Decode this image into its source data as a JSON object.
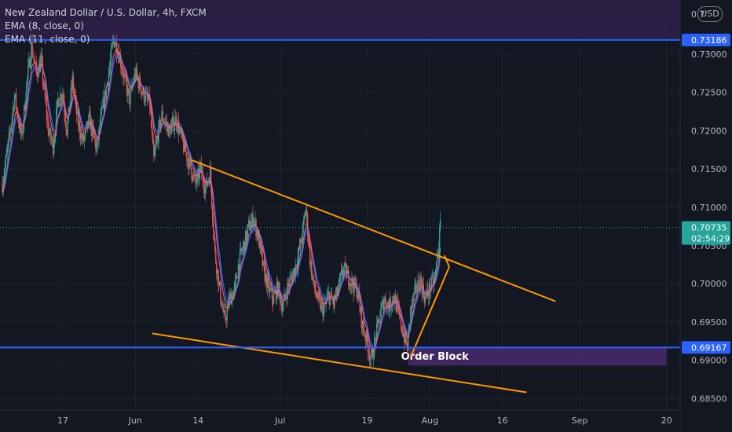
{
  "legend": {
    "symbol": "New Zealand Dollar / U.S. Dollar, 4h, FXCM",
    "ema1": "EMA (8, close, 0)",
    "ema2": "EMA (11, close, 0)"
  },
  "currency_button": "USD",
  "price_axis_top_label": "0.7",
  "colors": {
    "background": "#131722",
    "up_candle": "#26a69a",
    "down_candle": "#ef5350",
    "ema8": "#ff6d6d",
    "ema11": "#2962ff",
    "support_line": "#2962ff",
    "trendline": "#ff9800",
    "zone_fill": "#4a2a6b",
    "grid": "#1e222d",
    "axis_text": "#b2b5be"
  },
  "chart_data": {
    "type": "candlestick",
    "instrument": "New Zealand Dollar / U.S. Dollar",
    "timeframe": "4h",
    "source": "FXCM",
    "ylim": [
      0.6835,
      0.7345
    ],
    "y_ticks": [
      0.685,
      0.69,
      0.695,
      0.7,
      0.71,
      0.715,
      0.72,
      0.725,
      0.73
    ],
    "y_tick_labels": [
      "0.68500",
      "0.69000",
      "0.69500",
      "0.70000",
      "0.71000",
      "0.71500",
      "0.72000",
      "0.72500",
      "0.73000"
    ],
    "x_ticks": [
      {
        "label": "17",
        "day": 0
      },
      {
        "label": "Jun",
        "day": 15
      },
      {
        "label": "14",
        "day": 28
      },
      {
        "label": "Jul",
        "day": 45
      },
      {
        "label": "19",
        "day": 63
      },
      {
        "label": "Aug",
        "day": 76
      },
      {
        "label": "16",
        "day": 91
      },
      {
        "label": "Sep",
        "day": 107
      },
      {
        "label": "20",
        "day": 125
      }
    ],
    "price_path": [
      [
        -12.5,
        0.713
      ],
      [
        -11,
        0.7195
      ],
      [
        -10,
        0.7245
      ],
      [
        -8.5,
        0.719
      ],
      [
        -7.5,
        0.726
      ],
      [
        -6.5,
        0.731
      ],
      [
        -5.5,
        0.7275
      ],
      [
        -4.5,
        0.729
      ],
      [
        -3,
        0.72
      ],
      [
        -2,
        0.718
      ],
      [
        -1,
        0.724
      ],
      [
        0,
        0.725
      ],
      [
        0.8,
        0.72
      ],
      [
        2,
        0.7265
      ],
      [
        3,
        0.7215
      ],
      [
        4.2,
        0.7185
      ],
      [
        5.5,
        0.7215
      ],
      [
        7,
        0.7175
      ],
      [
        8,
        0.722
      ],
      [
        9.5,
        0.7275
      ],
      [
        10.5,
        0.732
      ],
      [
        11.5,
        0.7305
      ],
      [
        12.5,
        0.7275
      ],
      [
        13.8,
        0.724
      ],
      [
        15,
        0.7275
      ],
      [
        16.5,
        0.725
      ],
      [
        18,
        0.7235
      ],
      [
        18.8,
        0.716
      ],
      [
        19.5,
        0.719
      ],
      [
        20.5,
        0.722
      ],
      [
        22,
        0.72
      ],
      [
        23.5,
        0.7215
      ],
      [
        25,
        0.718
      ],
      [
        26.3,
        0.7155
      ],
      [
        27.5,
        0.713
      ],
      [
        28.5,
        0.715
      ],
      [
        29.5,
        0.7125
      ],
      [
        30.5,
        0.7145
      ],
      [
        31.5,
        0.704
      ],
      [
        32.5,
        0.699
      ],
      [
        33.5,
        0.695
      ],
      [
        34.5,
        0.698
      ],
      [
        35.5,
        0.699
      ],
      [
        36.5,
        0.703
      ],
      [
        37.5,
        0.705
      ],
      [
        38.5,
        0.7075
      ],
      [
        39.5,
        0.7085
      ],
      [
        40.5,
        0.706
      ],
      [
        41.5,
        0.702
      ],
      [
        42.5,
        0.6995
      ],
      [
        43.5,
        0.698
      ],
      [
        44.5,
        0.6995
      ],
      [
        45.5,
        0.697
      ],
      [
        46.5,
        0.6995
      ],
      [
        47.5,
        0.701
      ],
      [
        48.5,
        0.703
      ],
      [
        49.5,
        0.706
      ],
      [
        50.3,
        0.71
      ],
      [
        51.2,
        0.703
      ],
      [
        52,
        0.6995
      ],
      [
        53,
        0.6975
      ],
      [
        54,
        0.6965
      ],
      [
        55,
        0.6985
      ],
      [
        56,
        0.6975
      ],
      [
        57,
        0.699
      ],
      [
        58,
        0.702
      ],
      [
        59,
        0.701
      ],
      [
        60,
        0.7
      ],
      [
        61,
        0.699
      ],
      [
        62,
        0.6945
      ],
      [
        63,
        0.6925
      ],
      [
        63.8,
        0.69
      ],
      [
        64.5,
        0.692
      ],
      [
        65.5,
        0.6955
      ],
      [
        66.5,
        0.698
      ],
      [
        67.5,
        0.697
      ],
      [
        68.5,
        0.6985
      ],
      [
        69.5,
        0.696
      ],
      [
        70.5,
        0.6935
      ],
      [
        71.3,
        0.6915
      ],
      [
        72,
        0.6965
      ],
      [
        73,
        0.699
      ],
      [
        74,
        0.7005
      ],
      [
        75,
        0.698
      ],
      [
        76,
        0.6995
      ],
      [
        77,
        0.7005
      ],
      [
        77.8,
        0.705
      ],
      [
        78.3,
        0.7085
      ]
    ],
    "series": [
      {
        "name": "EMA (8, close, 0)",
        "style": "line"
      },
      {
        "name": "EMA (11, close, 0)",
        "style": "line"
      }
    ],
    "horizontal_lines": [
      {
        "label": "0.73186",
        "value": 0.73186,
        "color": "#2962ff"
      },
      {
        "label": "0.69167",
        "value": 0.69167,
        "color": "#2962ff"
      }
    ],
    "current_price": {
      "label": "0.70735",
      "value": 0.70735,
      "countdown": "02:54:29"
    },
    "trendlines": [
      {
        "from": [
          26.5,
          0.7162
        ],
        "to": [
          102,
          0.6977
        ]
      },
      {
        "from": [
          18.5,
          0.6935
        ],
        "to": [
          96,
          0.6858
        ]
      },
      {
        "from": [
          72,
          0.6904
        ],
        "to": [
          80,
          0.7022
        ]
      },
      {
        "from": [
          79,
          0.7037
        ],
        "to": [
          80,
          0.7022
        ]
      }
    ],
    "zones": [
      {
        "label": "Order Block",
        "from_day": 71.5,
        "to_day": 125,
        "top": 0.69167,
        "bottom": 0.6893
      },
      {
        "label": "",
        "from_day": -30,
        "to_day": 125,
        "top": 0.7345,
        "bottom": 0.732
      }
    ]
  }
}
